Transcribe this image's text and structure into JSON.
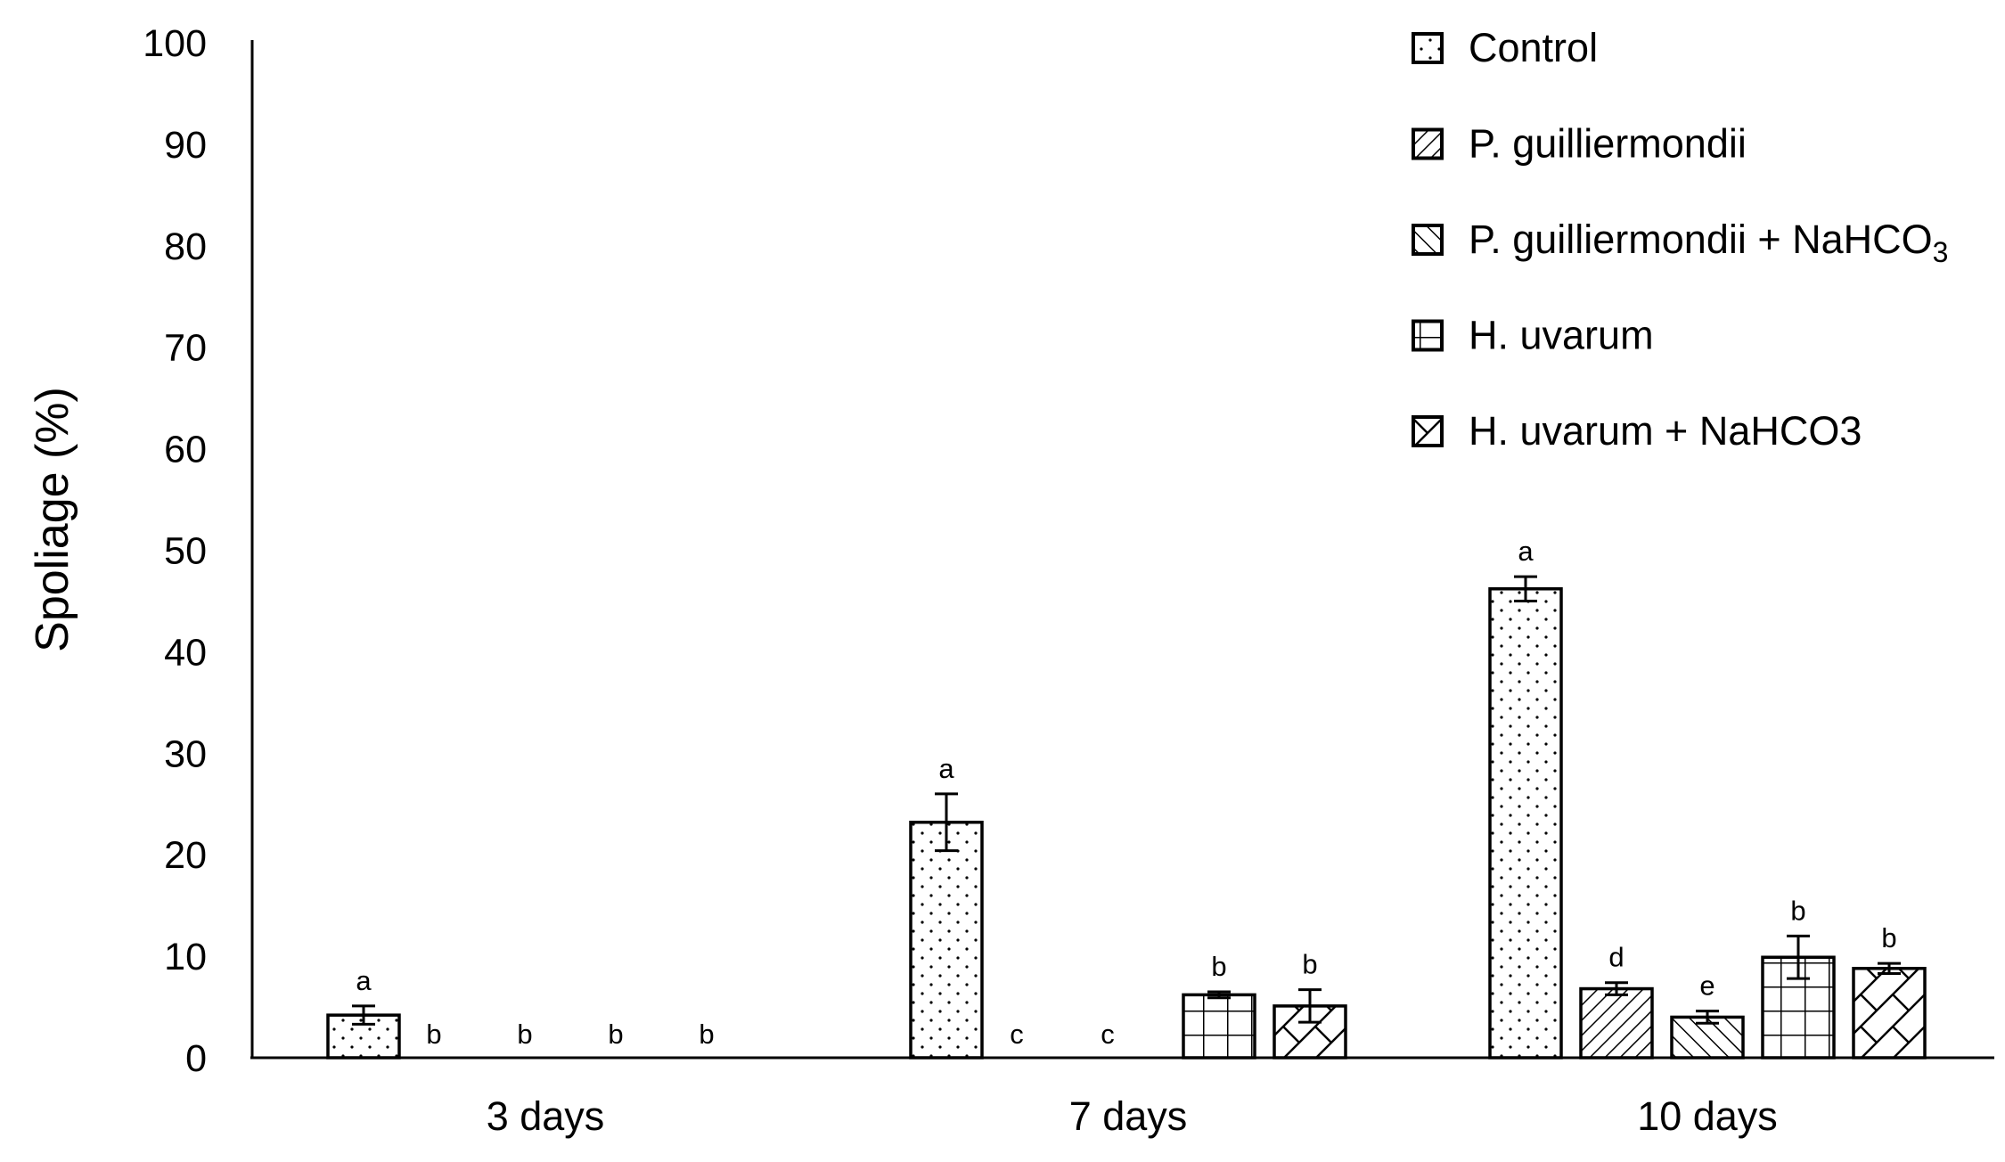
{
  "chart_data": {
    "type": "bar",
    "title": "",
    "xlabel": "",
    "ylabel": "Spoliage (%)",
    "ylim": [
      0,
      100
    ],
    "yticks": [
      0,
      10,
      20,
      30,
      40,
      50,
      60,
      70,
      80,
      90,
      100
    ],
    "grid": false,
    "legend_position": "top-right",
    "categories": [
      "3 days",
      "7 days",
      "10 days"
    ],
    "series": [
      {
        "name": "Control",
        "pattern": "dots",
        "values": [
          4.2,
          23.2,
          46.2
        ],
        "errors": [
          0.9,
          2.8,
          1.2
        ],
        "labels": [
          "a",
          "a",
          "a"
        ]
      },
      {
        "name": "P. guilliermondii",
        "pattern": "diagonal-dense",
        "values": [
          0,
          0,
          6.8
        ],
        "errors": [
          0,
          0,
          0.6
        ],
        "labels": [
          "b",
          "c",
          "d"
        ]
      },
      {
        "name": "P. guilliermondii + NaHCO",
        "name_subscript": "3",
        "pattern": "diagonal",
        "values": [
          0,
          0,
          4.0
        ],
        "errors": [
          0,
          0,
          0.6
        ],
        "labels": [
          "b",
          "c",
          "e"
        ]
      },
      {
        "name": "H. uvarum",
        "pattern": "grid",
        "values": [
          0,
          6.2,
          9.9
        ],
        "errors": [
          0,
          0.3,
          2.1
        ],
        "labels": [
          "b",
          "b",
          "b"
        ]
      },
      {
        "name": "H. uvarum + NaHCO3",
        "pattern": "diagonal-cross",
        "values": [
          0,
          5.1,
          8.8
        ],
        "errors": [
          0,
          1.6,
          0.5
        ],
        "labels": [
          "b",
          "b",
          "b"
        ]
      }
    ]
  }
}
